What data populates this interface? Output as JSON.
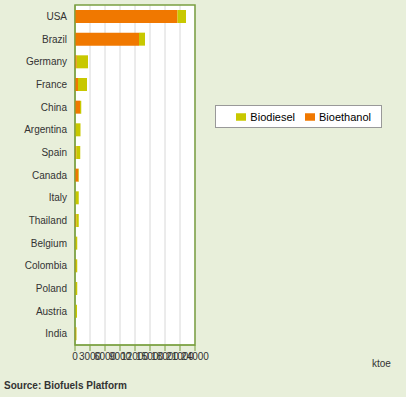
{
  "chart_data": {
    "type": "bar",
    "orientation": "horizontal",
    "stacked": true,
    "grid": true,
    "legend": "right",
    "xlabel": "ktoe",
    "source": "Source: Biofuels Platform",
    "categories": [
      "USA",
      "Brazil",
      "Germany",
      "France",
      "China",
      "Argentina",
      "Spain",
      "Canada",
      "Italy",
      "Thailand",
      "Belgium",
      "Colombia",
      "Poland",
      "Austria",
      "India"
    ],
    "series": [
      {
        "name": "Bioethanol",
        "color": "#f07800",
        "values": [
          20500,
          12800,
          350,
          600,
          1000,
          100,
          250,
          700,
          50,
          250,
          100,
          150,
          100,
          50,
          150
        ]
      },
      {
        "name": "Biodiesel",
        "color": "#c8c800",
        "values": [
          1700,
          1200,
          2250,
          1800,
          250,
          1000,
          800,
          100,
          700,
          500,
          350,
          300,
          350,
          350,
          150
        ]
      }
    ],
    "xlim": [
      0,
      24000
    ],
    "xticks": [
      0,
      3000,
      6000,
      9000,
      12000,
      15000,
      18000,
      21000,
      24000
    ]
  }
}
